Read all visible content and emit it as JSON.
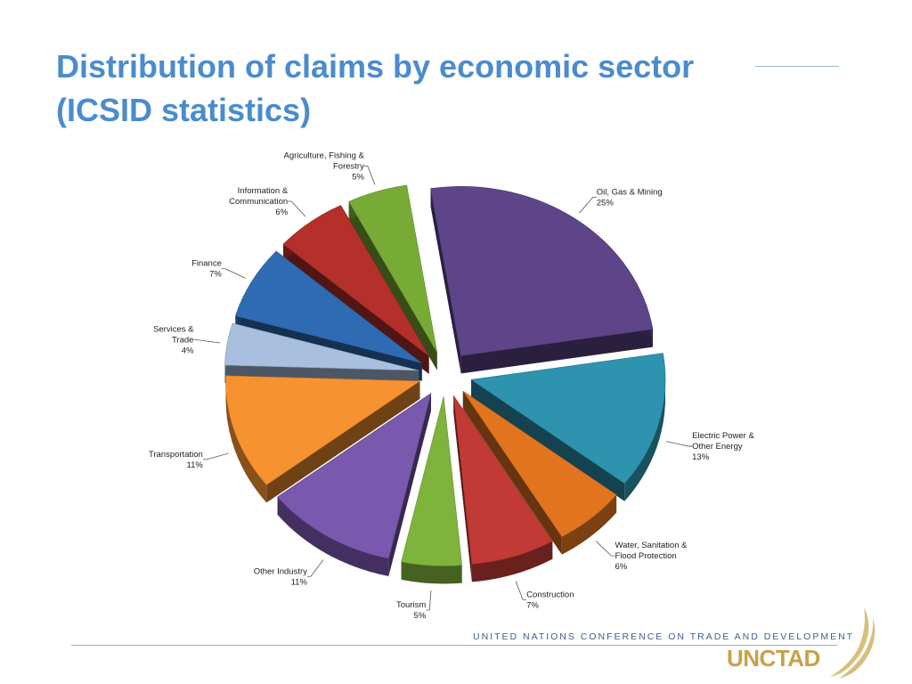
{
  "slide": {
    "title_line1": "Distribution of claims by economic sector",
    "title_line2": "(ICSID statistics)",
    "footer_org": "UNITED NATIONS CONFERENCE ON TRADE AND DEVELOPMENT",
    "footer_brand": "UNCTAD",
    "brand_color": "#c8a14a",
    "title_color": "#4a8ccd"
  },
  "chart_data": {
    "type": "pie",
    "title": "",
    "exploded": true,
    "three_d": true,
    "start_angle_deg": -99,
    "slices": [
      {
        "label_lines": [
          "Oil, Gas & Mining",
          "25%"
        ],
        "value": 25,
        "color": "#5e4589"
      },
      {
        "label_lines": [
          "Electric Power &",
          "Other Energy",
          "13%"
        ],
        "value": 13,
        "color": "#2d93ae"
      },
      {
        "label_lines": [
          "Water, Sanitation &",
          "Flood Protection",
          "6%"
        ],
        "value": 6,
        "color": "#e2741f"
      },
      {
        "label_lines": [
          "Construction",
          "7%"
        ],
        "value": 7,
        "color": "#c13a35"
      },
      {
        "label_lines": [
          "Tourism",
          "5%"
        ],
        "value": 5,
        "color": "#7eb33c"
      },
      {
        "label_lines": [
          "Other Industry",
          "11%"
        ],
        "value": 11,
        "color": "#7a58ae"
      },
      {
        "label_lines": [
          "Transportation",
          "11%"
        ],
        "value": 11,
        "color": "#f79230"
      },
      {
        "label_lines": [
          "Services &",
          "Trade",
          "4%"
        ],
        "value": 4,
        "color": "#a8bfde"
      },
      {
        "label_lines": [
          "Finance",
          "7%"
        ],
        "value": 7,
        "color": "#2f6bb3"
      },
      {
        "label_lines": [
          "Information &",
          "Communication",
          "6%"
        ],
        "value": 6,
        "color": "#b5302a"
      },
      {
        "label_lines": [
          "Agriculture, Fishing &",
          "Forestry",
          "5%"
        ],
        "value": 5,
        "color": "#78ab36"
      }
    ]
  }
}
